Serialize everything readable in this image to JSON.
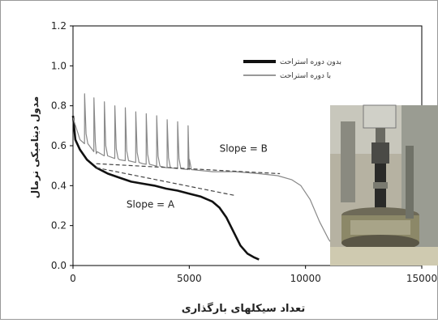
{
  "chart_data": {
    "type": "line",
    "xlabel": "تعداد سیکلهای بارگذاری",
    "ylabel": "مدول دینامیکی نرمال",
    "xlim": [
      0,
      15000
    ],
    "ylim": [
      0,
      1.2
    ],
    "x_ticks": [
      "0",
      "5000",
      "10000",
      "15000"
    ],
    "y_ticks": [
      "0.0",
      "0.2",
      "0.4",
      "0.6",
      "0.8",
      "1.0",
      "1.2"
    ],
    "legend_position": "top-right",
    "series": [
      {
        "name": "بدون دوره استراحت",
        "color": "#111111",
        "x": [
          0,
          100,
          300,
          600,
          1000,
          1500,
          2000,
          2500,
          3000,
          3500,
          4000,
          4500,
          5000,
          5500,
          6000,
          6300,
          6600,
          6900,
          7200,
          7500,
          7800,
          8000
        ],
        "y": [
          0.75,
          0.63,
          0.58,
          0.53,
          0.49,
          0.46,
          0.44,
          0.42,
          0.41,
          0.4,
          0.385,
          0.375,
          0.36,
          0.345,
          0.32,
          0.29,
          0.24,
          0.17,
          0.1,
          0.06,
          0.04,
          0.03
        ]
      },
      {
        "name": "با دوره استراحت",
        "color": "#888888",
        "x": [
          0,
          300,
          1000,
          2000,
          3000,
          4000,
          5000,
          6000,
          7000,
          8000,
          8800,
          9400,
          9800,
          10200,
          10600,
          11000,
          11400,
          11800,
          12200
        ],
        "y": [
          0.74,
          0.63,
          0.56,
          0.53,
          0.51,
          0.49,
          0.48,
          0.47,
          0.47,
          0.46,
          0.45,
          0.43,
          0.4,
          0.33,
          0.22,
          0.13,
          0.07,
          0.04,
          0.03
        ],
        "rest_peaks_x": [
          500,
          900,
          1350,
          1800,
          2250,
          2700,
          3150,
          3600,
          4050,
          4500,
          4950
        ],
        "rest_peaks_y": [
          0.86,
          0.84,
          0.82,
          0.8,
          0.79,
          0.77,
          0.76,
          0.75,
          0.73,
          0.72,
          0.7
        ]
      }
    ],
    "trend_lines": [
      {
        "label": "Slope = A",
        "x": [
          1000,
          7000
        ],
        "y": [
          0.49,
          0.35
        ]
      },
      {
        "label": "Slope = B",
        "x": [
          1000,
          8900
        ],
        "y": [
          0.51,
          0.46
        ]
      }
    ],
    "annotations": [
      {
        "text": "Slope = A",
        "x": 2300,
        "y": 0.29
      },
      {
        "text": "Slope = B",
        "x": 6300,
        "y": 0.57
      }
    ]
  },
  "inset_photo": {
    "icon": "test-apparatus-photo"
  }
}
